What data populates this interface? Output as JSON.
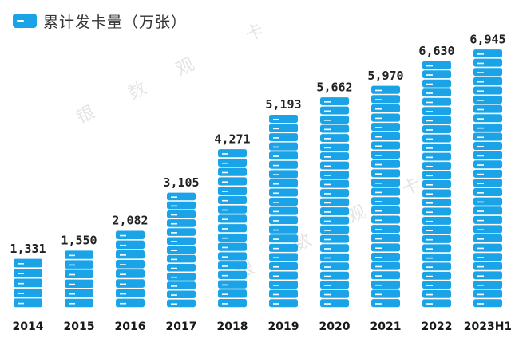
{
  "header": {
    "title": "累计发卡量（万张）",
    "icon": "card-icon"
  },
  "watermark": [
    "银",
    "数",
    "观",
    "卡"
  ],
  "colors": {
    "bar": "#1aa3e6",
    "bar_stripe": "#ffffff",
    "text": "#222222"
  },
  "chart_data": {
    "type": "bar",
    "title": "累计发卡量（万张）",
    "categories": [
      "2014",
      "2015",
      "2016",
      "2017",
      "2018",
      "2019",
      "2020",
      "2021",
      "2022",
      "2023H1"
    ],
    "values": [
      1331,
      1550,
      2082,
      3105,
      4271,
      5193,
      5662,
      5970,
      6630,
      6945
    ],
    "value_labels": [
      "1,331",
      "1,550",
      "2,082",
      "3,105",
      "4,271",
      "5,193",
      "5,662",
      "5,970",
      "6,630",
      "6,945"
    ],
    "ylim": [
      0,
      7400
    ],
    "grid": false,
    "legend": "top-left"
  }
}
